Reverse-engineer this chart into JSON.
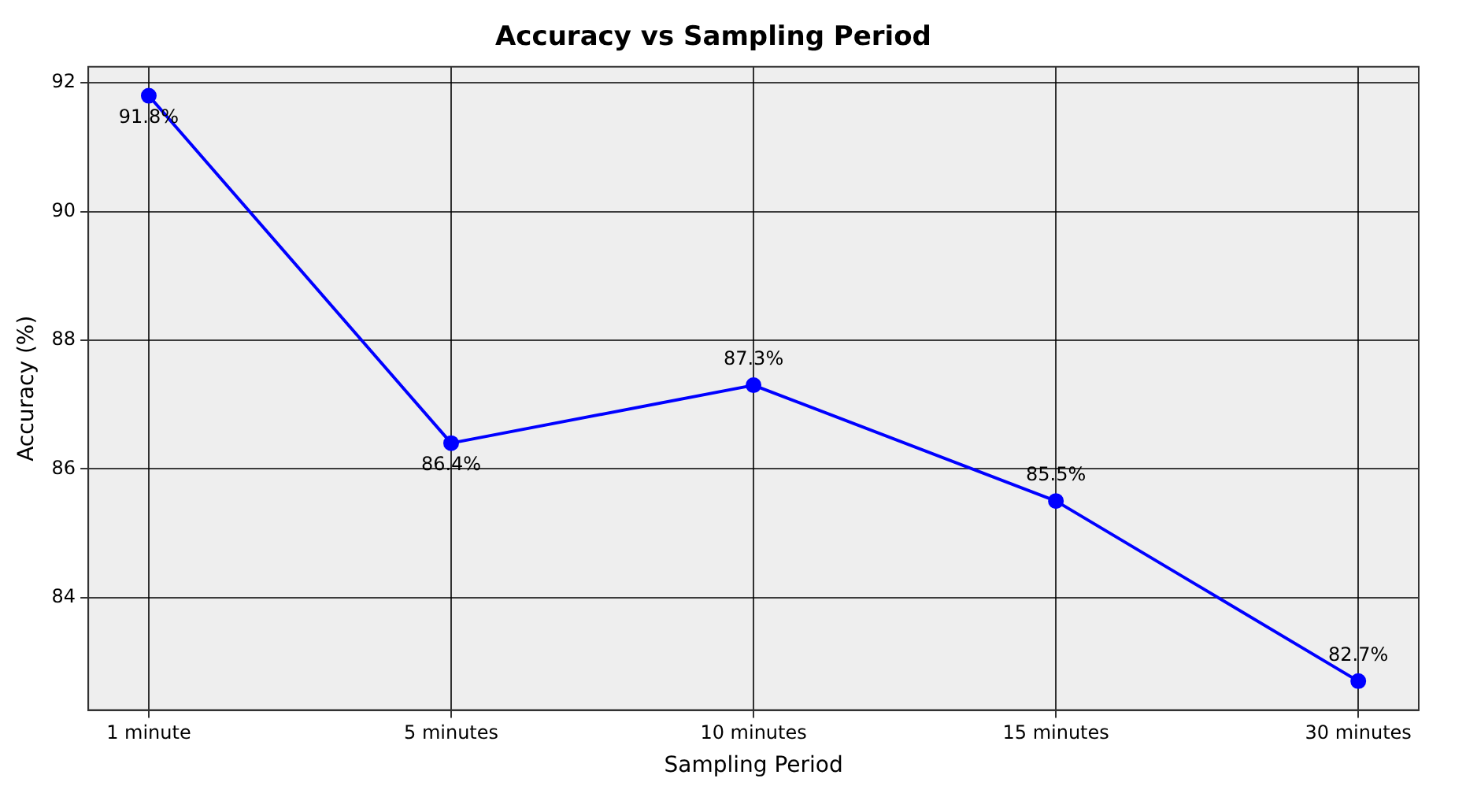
{
  "chart_data": {
    "type": "line",
    "title": "Accuracy vs Sampling Period",
    "xlabel": "Sampling Period",
    "ylabel": "Accuracy (%)",
    "categories": [
      "1 minute",
      "5 minutes",
      "10 minutes",
      "15 minutes",
      "30 minutes"
    ],
    "series": [
      {
        "color": "#0000ff",
        "values": [
          91.8,
          86.4,
          87.3,
          85.5,
          82.7
        ],
        "value_labels": [
          "91.8%",
          "86.4%",
          "87.3%",
          "85.5%",
          "82.7%"
        ]
      }
    ],
    "ylim": [
      82.25,
      92.25
    ],
    "yticks": [
      84,
      86,
      88,
      90,
      92
    ],
    "grid": true,
    "marker": "circle",
    "line_style": "solid",
    "legend": false
  }
}
